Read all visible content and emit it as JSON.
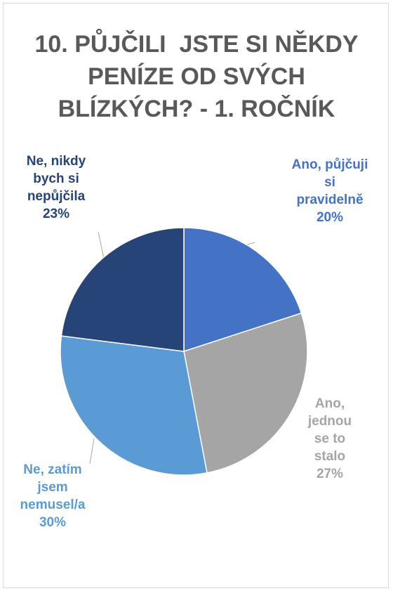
{
  "chart_data": {
    "type": "pie",
    "title": "10. PŮJČILI  JSTE SI NĚKDY PENÍZE OD SVÝCH BLÍZKÝCH? - 1. ROČNÍK",
    "categories": [
      "Ano, půjčuji si pravidelně",
      "Ano, jednou se to stalo",
      "Ne, zatím jsem nemusel/a",
      "Ne, nikdy bych si nepůjčila"
    ],
    "values": [
      20,
      27,
      30,
      23
    ],
    "value_labels": [
      "20%",
      "27%",
      "30%",
      "23%"
    ],
    "colors": [
      "#4472c4",
      "#a5a5a5",
      "#5b9bd5",
      "#264478"
    ]
  }
}
